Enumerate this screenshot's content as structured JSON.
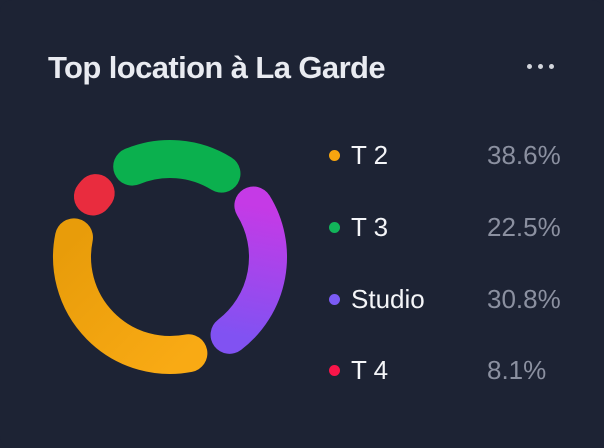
{
  "card": {
    "title": "Top location à La Garde",
    "background": "#1d2334",
    "menu_icon": "ellipsis-horizontal"
  },
  "legend": {
    "items": [
      {
        "label": "T 2",
        "value": "38.6%",
        "color": "#f6a50f"
      },
      {
        "label": "T 3",
        "value": "22.5%",
        "color": "#12b45a"
      },
      {
        "label": "Studio",
        "value": "30.8%",
        "color": "#7b5bf5"
      },
      {
        "label": "T 4",
        "value": "8.1%",
        "color": "#f81549"
      }
    ]
  },
  "chart_data": {
    "type": "pie",
    "variant": "donut",
    "title": "Top location à La Garde",
    "categories": [
      "T 2",
      "T 3",
      "Studio",
      "T 4"
    ],
    "values": [
      38.6,
      22.5,
      30.8,
      8.1
    ],
    "unit": "%",
    "legend_position": "right",
    "rounded_segments": true,
    "start_angle_deg": 324,
    "draw_order": [
      1,
      2,
      0,
      3
    ],
    "segments": [
      {
        "label": "T 2",
        "value": 38.6,
        "color": "#f9aa14",
        "color_end": "#e89c0a"
      },
      {
        "label": "T 3",
        "value": 22.5,
        "color": "#0bb04e",
        "color_end": "#0bb04e"
      },
      {
        "label": "Studio",
        "value": 30.8,
        "color": "#c53ae6",
        "color_end": "#8152f2"
      },
      {
        "label": "T 4",
        "value": 8.1,
        "color": "#e92c3e",
        "color_end": "#e92c3e"
      }
    ],
    "colors": {
      "background": "#1d2334",
      "title_text": "#e9ebf1",
      "label_text": "#f4f5f8",
      "value_text": "#8b90a0",
      "menu_dots": "#d2d5dc"
    }
  }
}
